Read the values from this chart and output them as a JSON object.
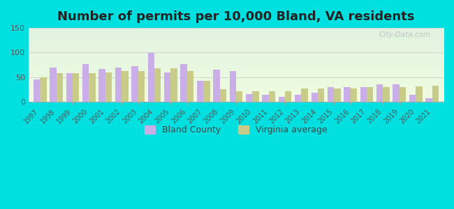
{
  "title": "Number of permits per 10,000 Bland, VA residents",
  "years": [
    1997,
    1998,
    1999,
    2000,
    2001,
    2002,
    2003,
    2004,
    2005,
    2006,
    2007,
    2008,
    2009,
    2010,
    2011,
    2012,
    2013,
    2014,
    2015,
    2016,
    2017,
    2018,
    2019,
    2020,
    2021
  ],
  "bland_county": [
    45,
    70,
    58,
    77,
    67,
    70,
    72,
    99,
    60,
    77,
    42,
    65,
    63,
    16,
    14,
    10,
    14,
    18,
    30,
    30,
    30,
    35,
    35,
    14,
    8
  ],
  "virginia_avg": [
    50,
    58,
    58,
    58,
    60,
    63,
    63,
    68,
    68,
    62,
    43,
    26,
    22,
    22,
    22,
    22,
    27,
    27,
    27,
    27,
    30,
    30,
    30,
    32,
    33
  ],
  "bland_color": "#c9aee8",
  "va_color": "#c8cc88",
  "outer_bg": "#00e0e0",
  "ylim": [
    0,
    150
  ],
  "yticks": [
    0,
    50,
    100,
    150
  ],
  "title_fontsize": 13,
  "legend_fontsize": 9,
  "watermark": "City-Data.com"
}
